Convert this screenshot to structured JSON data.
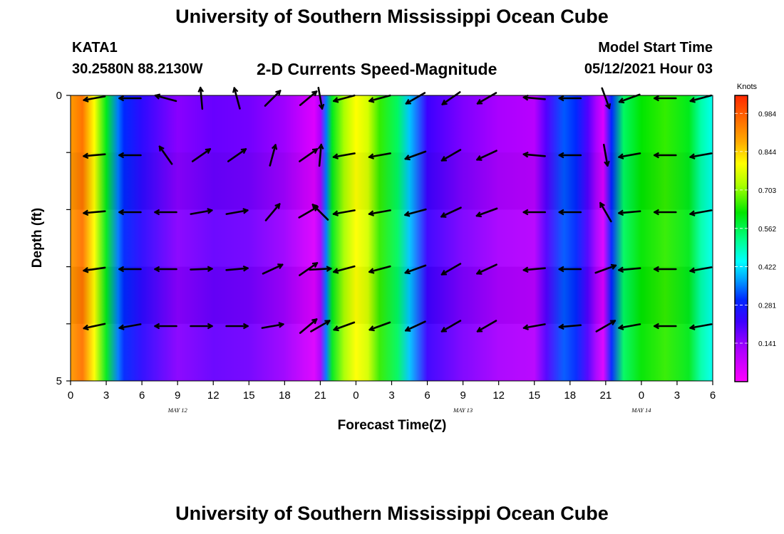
{
  "header": {
    "title": "University of Southern Mississippi Ocean Cube",
    "station": "KATA1",
    "coords": "30.2580N  88.2130W",
    "subtitle": "2-D Currents Speed-Magnitude",
    "model_start_label": "Model Start Time",
    "model_start_value": "05/12/2021 Hour 03"
  },
  "footer": {
    "title": "University of Southern Mississippi Ocean Cube"
  },
  "chart_data": {
    "type": "heatmap",
    "xlabel": "Forecast Time(Z)",
    "ylabel": "Depth (ft)",
    "x_tick_labels": [
      "0",
      "3",
      "6",
      "9",
      "12",
      "15",
      "18",
      "21",
      "0",
      "3",
      "6",
      "9",
      "12",
      "15",
      "18",
      "21",
      "0",
      "3",
      "6"
    ],
    "date_labels": [
      {
        "label": "MAY 12",
        "at_hour": 9
      },
      {
        "label": "MAY 13",
        "at_hour": 33
      },
      {
        "label": "MAY 14",
        "at_hour": 48
      }
    ],
    "y_tick_labels": [
      "0",
      "5"
    ],
    "ylim": [
      0,
      5
    ],
    "xlim_hours": [
      0,
      54
    ],
    "colorbar": {
      "title": "Knots",
      "ticks": [
        "0.984",
        "0.844",
        "0.703",
        "0.562",
        "0.422",
        "0.281",
        "0.141"
      ],
      "range": [
        0,
        1.05
      ]
    },
    "speed_knots_by_hour": [
      [
        0,
        0.9
      ],
      [
        1,
        0.95
      ],
      [
        2,
        0.8
      ],
      [
        3,
        0.6
      ],
      [
        4,
        0.35
      ],
      [
        4.5,
        0.3
      ],
      [
        6,
        0.24
      ],
      [
        9,
        0.15
      ],
      [
        12,
        0.18
      ],
      [
        15,
        0.17
      ],
      [
        18,
        0.13
      ],
      [
        19.5,
        0.08
      ],
      [
        20.5,
        0.05
      ],
      [
        21,
        0.12
      ],
      [
        21.5,
        0.35
      ],
      [
        22,
        0.6
      ],
      [
        23,
        0.72
      ],
      [
        24,
        0.8
      ],
      [
        25,
        0.76
      ],
      [
        26,
        0.65
      ],
      [
        27.5,
        0.55
      ],
      [
        28.5,
        0.4
      ],
      [
        30,
        0.22
      ],
      [
        33,
        0.16
      ],
      [
        36,
        0.12
      ],
      [
        39,
        0.1
      ],
      [
        40,
        0.2
      ],
      [
        41.5,
        0.33
      ],
      [
        42.5,
        0.3
      ],
      [
        43.5,
        0.2
      ],
      [
        44.2,
        0.12
      ],
      [
        44.8,
        0.05
      ],
      [
        45.5,
        0.3
      ],
      [
        46.5,
        0.55
      ],
      [
        48,
        0.62
      ],
      [
        50,
        0.65
      ],
      [
        52,
        0.6
      ],
      [
        53,
        0.5
      ],
      [
        54,
        0.45
      ]
    ],
    "depth_levels_ft": [
      0,
      1,
      2,
      3,
      4,
      5
    ],
    "vectors": [
      {
        "hour": 2,
        "angles_deg": [
          190,
          185,
          185,
          188,
          192
        ]
      },
      {
        "hour": 5,
        "angles_deg": [
          180,
          180,
          180,
          180,
          190
        ]
      },
      {
        "hour": 8,
        "angles_deg": [
          165,
          125,
          180,
          180,
          180
        ]
      },
      {
        "hour": 11,
        "angles_deg": [
          95,
          35,
          10,
          2,
          0
        ]
      },
      {
        "hour": 14,
        "angles_deg": [
          105,
          35,
          10,
          5,
          0
        ]
      },
      {
        "hour": 17,
        "angles_deg": [
          45,
          75,
          50,
          25,
          10
        ]
      },
      {
        "hour": 20,
        "angles_deg": [
          40,
          35,
          30,
          35,
          40
        ]
      },
      {
        "hour": 21,
        "angles_deg": [
          -80,
          85,
          135,
          3,
          30
        ]
      },
      {
        "hour": 23,
        "angles_deg": [
          195,
          190,
          190,
          195,
          200
        ]
      },
      {
        "hour": 26,
        "angles_deg": [
          195,
          190,
          190,
          195,
          200
        ]
      },
      {
        "hour": 29,
        "angles_deg": [
          210,
          200,
          195,
          200,
          205
        ]
      },
      {
        "hour": 32,
        "angles_deg": [
          215,
          210,
          205,
          210,
          210
        ]
      },
      {
        "hour": 35,
        "angles_deg": [
          210,
          205,
          200,
          205,
          210
        ]
      },
      {
        "hour": 39,
        "angles_deg": [
          175,
          175,
          180,
          185,
          190
        ]
      },
      {
        "hour": 42,
        "angles_deg": [
          180,
          180,
          180,
          180,
          185
        ]
      },
      {
        "hour": 45,
        "angles_deg": [
          -70,
          -80,
          120,
          20,
          30
        ]
      },
      {
        "hour": 47,
        "angles_deg": [
          200,
          190,
          185,
          185,
          190
        ]
      },
      {
        "hour": 50,
        "angles_deg": [
          180,
          180,
          180,
          180,
          180
        ]
      },
      {
        "hour": 53,
        "angles_deg": [
          195,
          190,
          190,
          190,
          190
        ]
      }
    ]
  }
}
